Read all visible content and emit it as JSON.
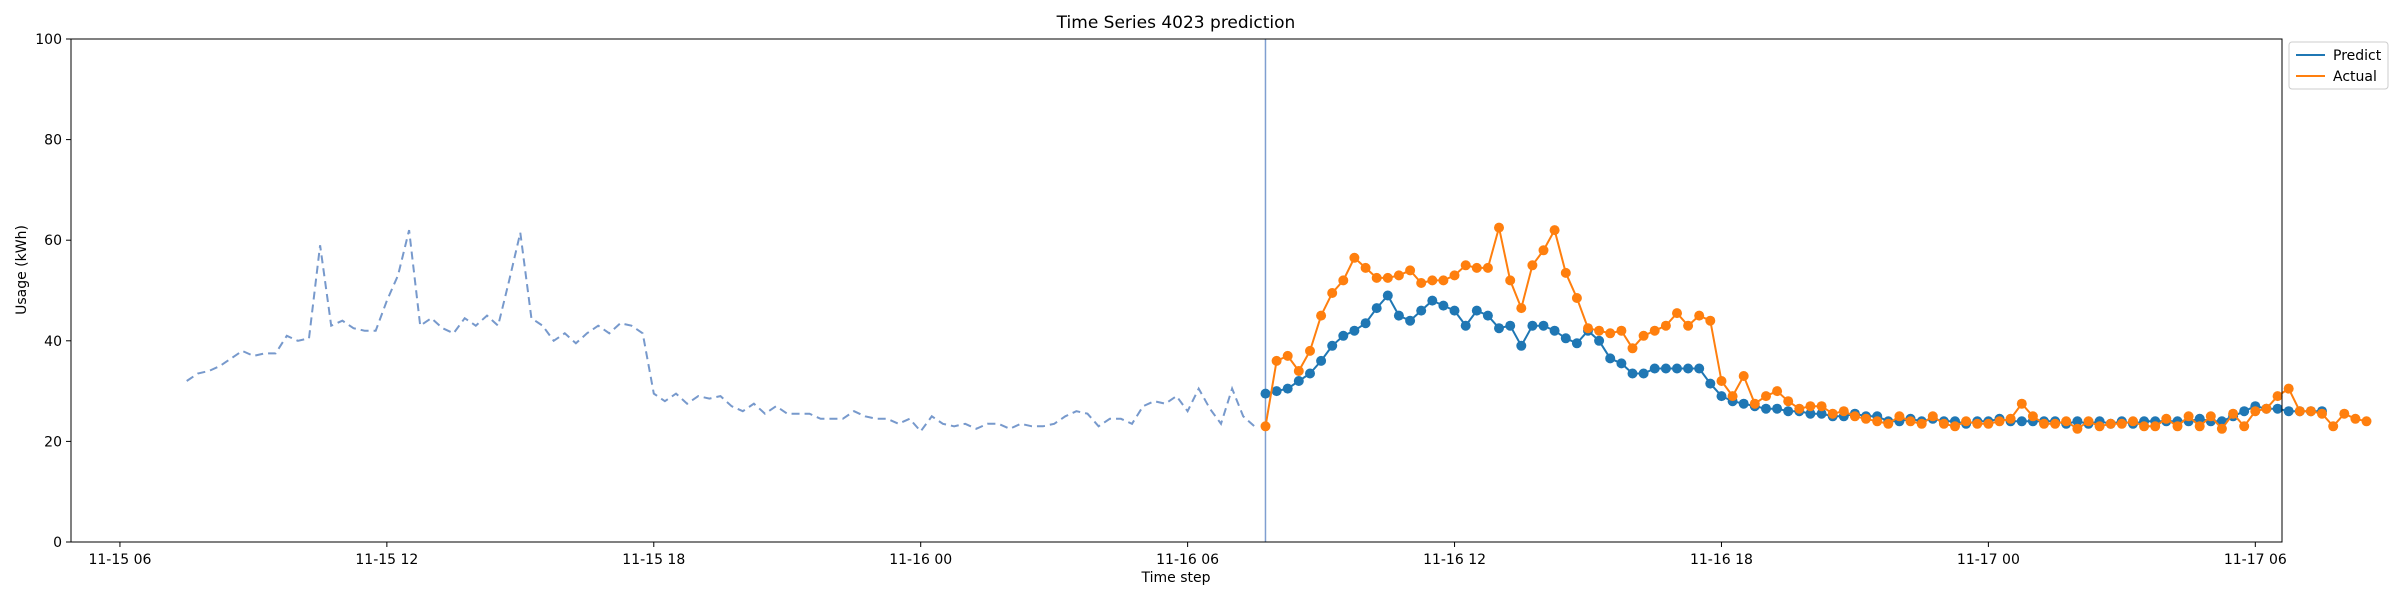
{
  "chart_data": {
    "type": "line",
    "title": "Time Series 4023 prediction",
    "xlabel": "Time step",
    "ylabel": "Usage (kWh)",
    "ylim": [
      0,
      100
    ],
    "xlim_hours": [
      -1.1,
      48.6
    ],
    "x_start": "2015-11-15 06:00",
    "x_step_minutes": 15,
    "yticks": [
      0,
      20,
      40,
      60,
      80,
      100
    ],
    "xticks": [
      {
        "label": "11-15 06",
        "h": 0
      },
      {
        "label": "11-15 12",
        "h": 6
      },
      {
        "label": "11-15 18",
        "h": 12
      },
      {
        "label": "11-16 00",
        "h": 18
      },
      {
        "label": "11-16 06",
        "h": 24
      },
      {
        "label": "11-16 12",
        "h": 30
      },
      {
        "label": "11-16 18",
        "h": 36
      },
      {
        "label": "11-17 00",
        "h": 42
      },
      {
        "label": "11-17 06",
        "h": 48
      }
    ],
    "legend": {
      "position": "upper-right-outside",
      "entries": [
        "Predict",
        "Actual"
      ]
    },
    "colors": {
      "history": "#7799cc",
      "predict": "#1f77b4",
      "actual": "#ff7f0e",
      "divider": "#7f9fd0"
    },
    "history": {
      "start_h": 1.5,
      "step_h": 0.25,
      "values": [
        32,
        33.5,
        34,
        35,
        36.5,
        38,
        37,
        37.5,
        37.5,
        41,
        40,
        40.5,
        59,
        43,
        44,
        42.5,
        42,
        42,
        48,
        53,
        62,
        43,
        44.5,
        42.5,
        41.5,
        44.5,
        43,
        45,
        43,
        52,
        61.5,
        44.5,
        43,
        40,
        41.5,
        39.5,
        41.5,
        43,
        41.5,
        43.5,
        43,
        41.5,
        29.5,
        28,
        29.5,
        27.5,
        29,
        28.5,
        29,
        27,
        26,
        27.5,
        25.5,
        27,
        25.5,
        25.5,
        25.5,
        24.5,
        24.5,
        24.5,
        26,
        25,
        24.5,
        24.5,
        23.5,
        24.5,
        22,
        25,
        23.5,
        23,
        23.5,
        22.5,
        23.5,
        23.5,
        22.5,
        23.5,
        23,
        23,
        23.5,
        25,
        26,
        25.5,
        23,
        24.5,
        24.5,
        23.5,
        27,
        28,
        27.5,
        29,
        26,
        30.5,
        26.5,
        23.5,
        30.5,
        25,
        23
      ]
    },
    "divider_h": 25.75,
    "forecast": {
      "start_h": 25.75,
      "step_h": 0.25,
      "series": [
        {
          "name": "Predict",
          "values": [
            29.5,
            30,
            30.5,
            32,
            33.5,
            36,
            39,
            41,
            42,
            43.5,
            46.5,
            49,
            45,
            44,
            46,
            48,
            47,
            46,
            43,
            46,
            45,
            42.5,
            43,
            39,
            43,
            43,
            42,
            40.5,
            39.5,
            42,
            40,
            36.5,
            35.5,
            33.5,
            33.5,
            34.5,
            34.5,
            34.5,
            34.5,
            34.5,
            31.5,
            29,
            28,
            27.5,
            27,
            26.5,
            26.5,
            26,
            26,
            25.5,
            25.5,
            25,
            25,
            25.5,
            25,
            25,
            24,
            24,
            24.5,
            24,
            24.5,
            24,
            24,
            23.5,
            24,
            24,
            24.5,
            24,
            24,
            24,
            24,
            24,
            23.5,
            24,
            23.5,
            24,
            23.5,
            24,
            23.5,
            24,
            24,
            24,
            24,
            24,
            24.5,
            24,
            24,
            25,
            26,
            27,
            26.5,
            26.5,
            26,
            26,
            26,
            26
          ]
        },
        {
          "name": "Actual",
          "values": [
            23,
            36,
            37,
            34,
            38,
            45,
            49.5,
            52,
            56.5,
            54.5,
            52.5,
            52.5,
            53,
            54,
            51.5,
            52,
            52,
            53,
            55,
            54.5,
            54.5,
            62.5,
            52,
            46.5,
            55,
            58,
            62,
            53.5,
            48.5,
            42.5,
            42,
            41.5,
            42,
            38.5,
            41,
            42,
            43,
            45.5,
            43,
            45,
            44,
            32,
            29,
            33,
            27.5,
            29,
            30,
            28,
            26.5,
            27,
            27,
            25.5,
            26,
            25,
            24.5,
            24,
            23.5,
            25,
            24,
            23.5,
            25,
            23.5,
            23,
            24,
            23.5,
            23.5,
            24,
            24.5,
            27.5,
            25,
            23.5,
            23.5,
            24,
            22.5,
            24,
            23,
            23.5,
            23.5,
            24,
            23,
            23,
            24.5,
            23,
            25,
            23,
            25,
            22.5,
            25.5,
            23,
            26,
            26.5,
            29,
            30.5,
            26,
            26,
            25.5,
            23,
            25.5,
            24.5,
            24
          ]
        }
      ]
    }
  }
}
